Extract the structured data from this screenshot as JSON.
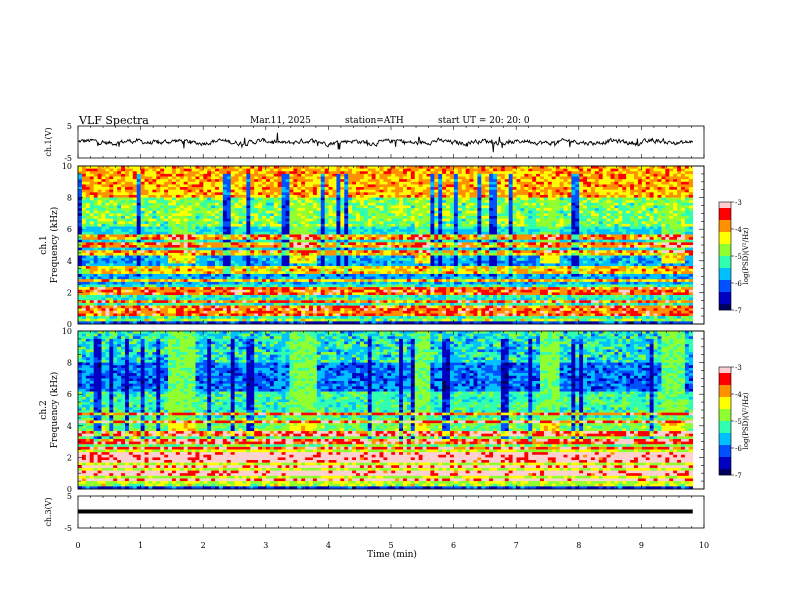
{
  "header": {
    "title": "VLF  Spectra",
    "date": "Mar.11, 2025",
    "station": "station=ATH",
    "start": "start  UT  =    20: 20: 0"
  },
  "chart_data": [
    {
      "type": "line",
      "name": "ch1-waveform",
      "ylabel": "ch.1(V)",
      "ylim": [
        -5,
        5
      ],
      "y_ticks": [
        "5",
        "-5"
      ],
      "xlim": [
        0,
        10
      ],
      "baseline": 0,
      "amplitude_typical": 0.7,
      "spikes_up_to": 2.5
    },
    {
      "type": "heatmap",
      "name": "ch1-spectrogram",
      "channel_label": "ch.1",
      "ylabel": "Frequency  (kHz)",
      "ylim": [
        0,
        10
      ],
      "y_ticks": [
        "0",
        "2",
        "4",
        "6",
        "8",
        "10"
      ],
      "xlim": [
        0,
        10
      ],
      "colorbar": {
        "label": "log(PSD)(V²/Hz)",
        "range": [
          -7,
          -3
        ],
        "ticks": [
          "-3",
          "-4",
          "-5",
          "-6",
          "-7"
        ]
      },
      "bursts_min": [
        [
          1.45,
          1.85
        ],
        [
          3.4,
          3.8
        ],
        [
          5.35,
          5.65
        ],
        [
          7.35,
          7.7
        ],
        [
          9.35,
          9.7
        ]
      ],
      "burst_band_khz": [
        3.8,
        4.3
      ],
      "lines_khz": [
        0.3,
        0.6,
        0.8,
        1.0,
        1.4,
        2.0,
        2.3,
        2.7,
        3.3,
        3.5,
        4.5,
        5.0,
        5.5
      ]
    },
    {
      "type": "heatmap",
      "name": "ch2-spectrogram",
      "channel_label": "ch.2",
      "ylabel": "Frequency  (kHz)",
      "ylim": [
        0,
        10
      ],
      "y_ticks": [
        "0",
        "2",
        "4",
        "6",
        "8",
        "10"
      ],
      "xlim": [
        0,
        10
      ],
      "colorbar": {
        "label": "log(PSD)(V²/Hz)",
        "range": [
          -7,
          -3
        ],
        "ticks": [
          "-3",
          "-4",
          "-5",
          "-6",
          "-7"
        ]
      },
      "bursts_min": [
        [
          1.45,
          1.85
        ],
        [
          3.4,
          3.8
        ],
        [
          5.35,
          5.65
        ],
        [
          7.35,
          7.7
        ],
        [
          9.35,
          9.7
        ]
      ],
      "burst_band_khz": [
        3.6,
        4.1
      ],
      "lines_khz": [
        0.3,
        0.6,
        1.0,
        1.4,
        1.8,
        2.0,
        2.3,
        2.6,
        3.0,
        3.5,
        4.2,
        4.7
      ]
    },
    {
      "type": "line",
      "name": "ch3-waveform",
      "ylabel": "ch.3(V)",
      "ylim": [
        -5,
        5
      ],
      "y_ticks": [
        "5",
        "-5"
      ],
      "xlim": [
        0,
        10
      ],
      "baseline": 0
    }
  ],
  "xaxis": {
    "label": "Time  (min)",
    "ticks": [
      "0",
      "1",
      "2",
      "3",
      "4",
      "5",
      "6",
      "7",
      "8",
      "9",
      "10"
    ],
    "data_end_min": 9.82
  },
  "colors": {
    "colormap": [
      "#000060",
      "#0000c0",
      "#0050ff",
      "#00c0ff",
      "#30ffb0",
      "#90ff30",
      "#ffff00",
      "#ff9000",
      "#ff0000",
      "#ffd0d0"
    ]
  }
}
